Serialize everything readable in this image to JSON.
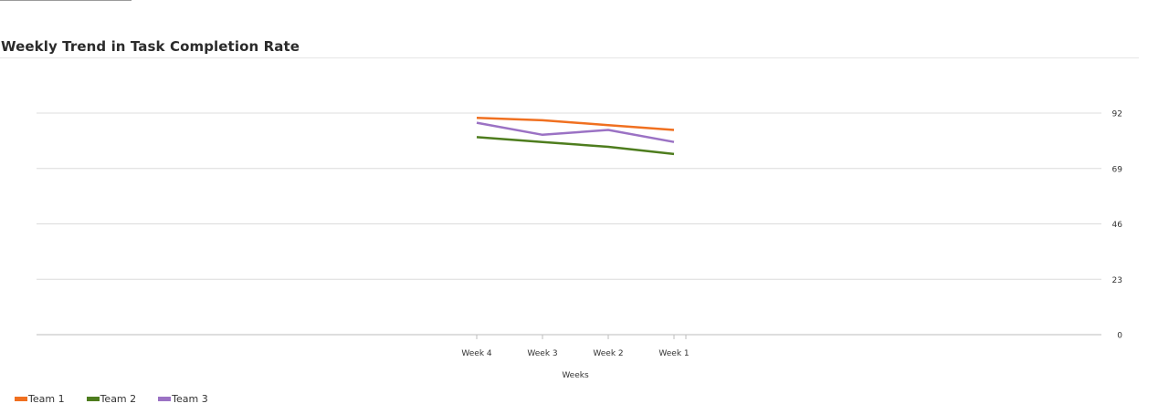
{
  "chart_data": {
    "type": "line",
    "title": "Weekly Trend in Task Completion Rate",
    "xlabel": "Weeks",
    "ylabel": "",
    "categories": [
      "Week 4",
      "Week 3",
      "Week 2",
      "Week 1"
    ],
    "yticks": [
      "92",
      "69",
      "46",
      "23",
      "0"
    ],
    "ylim": [
      0,
      92
    ],
    "y_axis_side": "right",
    "grid": true,
    "legend_position": "bottom-left",
    "series": [
      {
        "name": "Team 1",
        "color": "#f07020",
        "values": [
          90,
          89,
          87,
          85
        ]
      },
      {
        "name": "Team 2",
        "color": "#4e7d1e",
        "values": [
          82,
          80,
          78,
          75
        ]
      },
      {
        "name": "Team 3",
        "color": "#9b72c4",
        "values": [
          88,
          83,
          85,
          80
        ]
      }
    ]
  }
}
